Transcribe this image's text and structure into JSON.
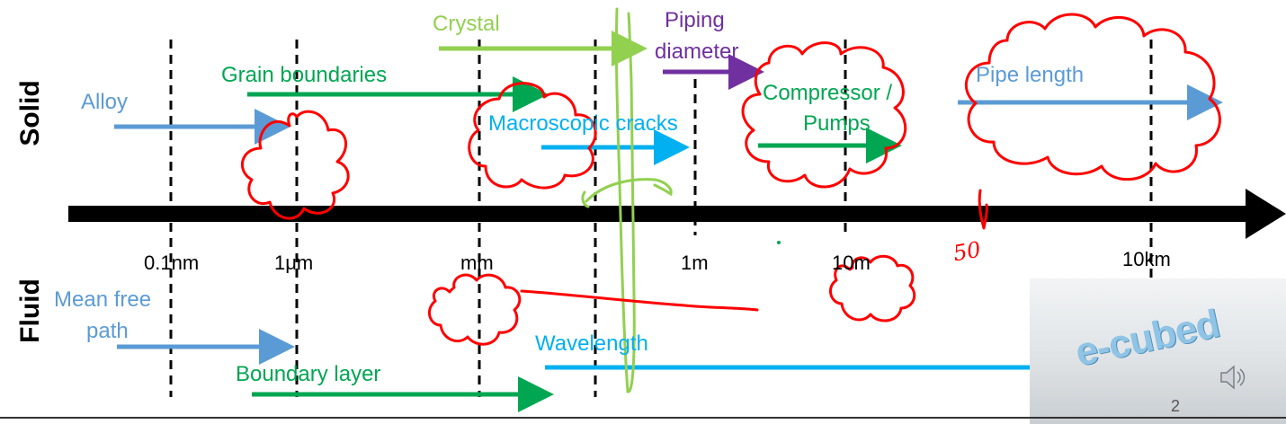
{
  "colors": {
    "green": "#00a651",
    "blue_light": "#00b0f0",
    "blue_steel": "#5b9bd5",
    "purple": "#7030a0",
    "lime": "#92d050",
    "ink_red": "#ff0000",
    "axis": "#000000"
  },
  "side_labels": {
    "solid": "Solid",
    "fluid": "Fluid"
  },
  "ticks": [
    "0.1nm",
    "1μm",
    "mm",
    "1m",
    "10m",
    "10km"
  ],
  "solid_items": {
    "alloy": "Alloy",
    "grain_boundaries": "Grain boundaries",
    "crystal": "Crystal",
    "macroscopic_cracks": "Macroscopic cracks",
    "piping_diameter_line1": "Piping",
    "piping_diameter_line2": "diameter",
    "compressor_line1": "Compressor /",
    "compressor_line2": "Pumps",
    "pipe_length": "Pipe length"
  },
  "fluid_items": {
    "mean_free_path_line1": "Mean free",
    "mean_free_path_line2": "path",
    "boundary_layer": "Boundary layer",
    "wavelength": "Wavelength"
  },
  "handwriting": {
    "note_50": "50"
  },
  "footer": {
    "logo_text": "e-cubed",
    "page_number": "2",
    "speaker_icon": "speaker-icon"
  }
}
